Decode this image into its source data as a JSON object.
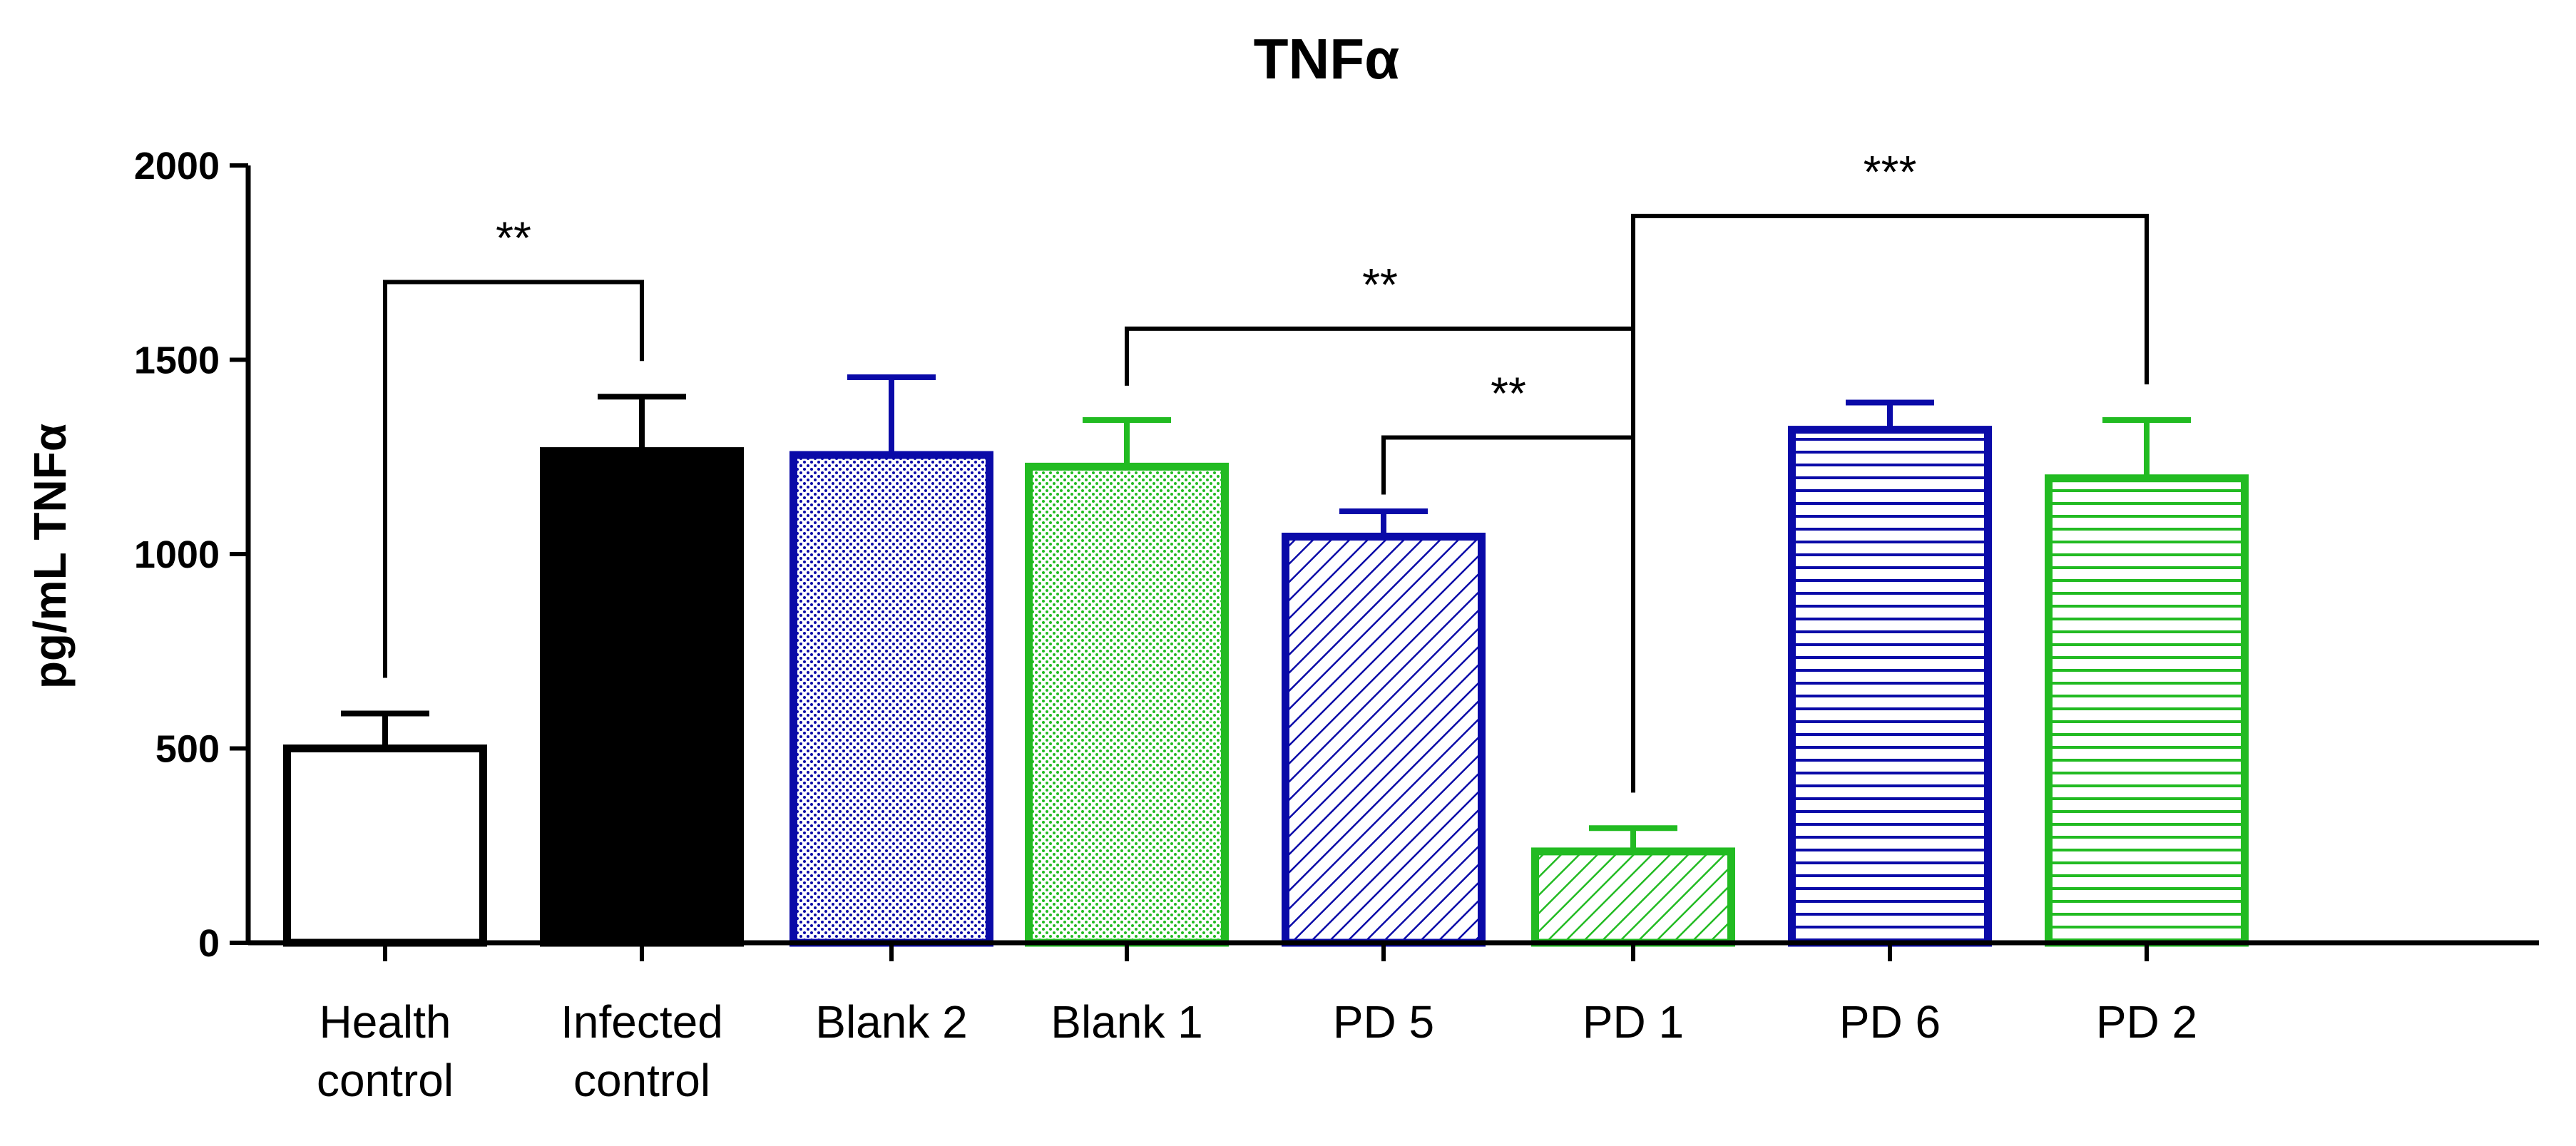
{
  "chart_data": {
    "type": "bar",
    "title": "TNFα",
    "ylabel": "pg/mL TNFα",
    "xlabel": "",
    "ylim": [
      0,
      2000
    ],
    "yticks": [
      0,
      500,
      1000,
      1500,
      2000
    ],
    "categories": [
      [
        "Health",
        "control"
      ],
      [
        "Infected",
        "control"
      ],
      [
        "Blank 2"
      ],
      [
        "Blank 1"
      ],
      [
        "PD 5"
      ],
      [
        "PD 1"
      ],
      [
        "PD 6"
      ],
      [
        "PD 2"
      ]
    ],
    "values": [
      500,
      1265,
      1255,
      1225,
      1045,
      235,
      1320,
      1195
    ],
    "errors": [
      90,
      140,
      200,
      120,
      65,
      60,
      70,
      150
    ],
    "bar_styles": [
      {
        "edge": "#000000",
        "fill": "#ffffff",
        "pattern": "none"
      },
      {
        "edge": "#000000",
        "fill": "#000000",
        "pattern": "solid"
      },
      {
        "edge": "#0a0aa8",
        "fill": "#0a0aa8",
        "pattern": "dots"
      },
      {
        "edge": "#22bb22",
        "fill": "#22bb22",
        "pattern": "dots"
      },
      {
        "edge": "#0a0aa8",
        "fill": "#0a0aa8",
        "pattern": "diagonal"
      },
      {
        "edge": "#22bb22",
        "fill": "#22bb22",
        "pattern": "diagonal"
      },
      {
        "edge": "#0a0aa8",
        "fill": "#0a0aa8",
        "pattern": "horizontal"
      },
      {
        "edge": "#22bb22",
        "fill": "#22bb22",
        "pattern": "horizontal"
      }
    ],
    "significance": [
      {
        "from": 0,
        "to": 1,
        "level": 1700,
        "label": "**"
      },
      {
        "from": 3,
        "to": 5,
        "level": 1580,
        "label": "**"
      },
      {
        "from": 4,
        "to": 5,
        "level": 1300,
        "label": "**"
      },
      {
        "from": 5,
        "to": 7,
        "level": 1870,
        "label": "***"
      }
    ]
  }
}
